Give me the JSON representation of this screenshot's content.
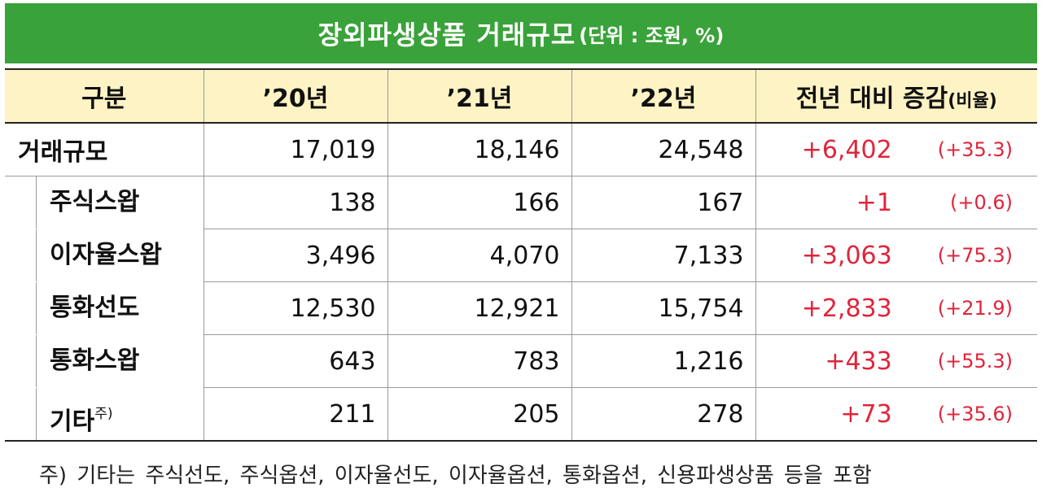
{
  "title": {
    "main": "장외파생상품 거래규모",
    "unit": "(단위 : 조원, %)"
  },
  "table": {
    "headers": [
      "구분",
      "’20년",
      "’21년",
      "’22년",
      "전년 대비 증감"
    ],
    "header_paren": "(비율)",
    "rows": [
      {
        "label": "거래규모",
        "y20": "17,019",
        "y21": "18,146",
        "y22": "24,548",
        "change": "+6,402",
        "pct": "(+35.3)"
      },
      {
        "label": "주식스왑",
        "y20": "138",
        "y21": "166",
        "y22": "167",
        "change": "+1",
        "pct": "(+0.6)"
      },
      {
        "label": "이자율스왑",
        "y20": "3,496",
        "y21": "4,070",
        "y22": "7,133",
        "change": "+3,063",
        "pct": "(+75.3)"
      },
      {
        "label": "통화선도",
        "y20": "12,530",
        "y21": "12,921",
        "y22": "15,754",
        "change": "+2,833",
        "pct": "(+21.9)"
      },
      {
        "label": "통화스왑",
        "y20": "643",
        "y21": "783",
        "y22": "1,216",
        "change": "+433",
        "pct": "(+55.3)"
      },
      {
        "label": "기타",
        "label_sup": "주)",
        "y20": "211",
        "y21": "205",
        "y22": "278",
        "change": "+73",
        "pct": "(+35.6)"
      }
    ]
  },
  "footnote": "주) 기타는 주식선도, 주식옵션, 이자율선도, 이자율옵션, 통화옵션, 신용파생상품 등을 포함",
  "colors": {
    "banner": "#3aa23a",
    "header_bg": "#fdf3c4",
    "change_text": "#e0243a"
  }
}
